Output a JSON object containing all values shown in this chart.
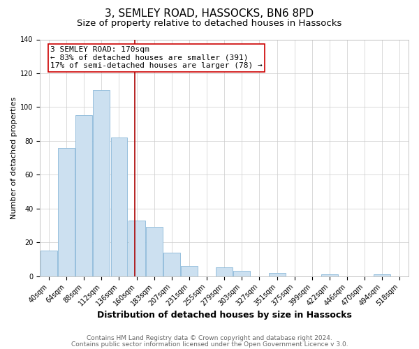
{
  "title": "3, SEMLEY ROAD, HASSOCKS, BN6 8PD",
  "subtitle": "Size of property relative to detached houses in Hassocks",
  "xlabel": "Distribution of detached houses by size in Hassocks",
  "ylabel": "Number of detached properties",
  "bar_color": "#cce0f0",
  "bar_edge_color": "#8ab8d8",
  "categories": [
    "40sqm",
    "64sqm",
    "88sqm",
    "112sqm",
    "136sqm",
    "160sqm",
    "183sqm",
    "207sqm",
    "231sqm",
    "255sqm",
    "279sqm",
    "303sqm",
    "327sqm",
    "351sqm",
    "375sqm",
    "399sqm",
    "422sqm",
    "446sqm",
    "470sqm",
    "494sqm",
    "518sqm"
  ],
  "values": [
    15,
    76,
    95,
    110,
    82,
    33,
    29,
    14,
    6,
    0,
    5,
    3,
    0,
    2,
    0,
    0,
    1,
    0,
    0,
    1,
    0
  ],
  "ylim": [
    0,
    140
  ],
  "yticks": [
    0,
    20,
    40,
    60,
    80,
    100,
    120,
    140
  ],
  "annotation_title": "3 SEMLEY ROAD: 170sqm",
  "annotation_line1": "← 83% of detached houses are smaller (391)",
  "annotation_line2": "17% of semi-detached houses are larger (78) →",
  "annotation_box_color": "#ffffff",
  "annotation_box_edge": "#cc0000",
  "vline_color": "#aa0000",
  "footer1": "Contains HM Land Registry data © Crown copyright and database right 2024.",
  "footer2": "Contains public sector information licensed under the Open Government Licence v 3.0.",
  "title_fontsize": 11,
  "subtitle_fontsize": 9.5,
  "xlabel_fontsize": 9,
  "ylabel_fontsize": 8,
  "tick_fontsize": 7,
  "annotation_fontsize": 8,
  "footer_fontsize": 6.5
}
